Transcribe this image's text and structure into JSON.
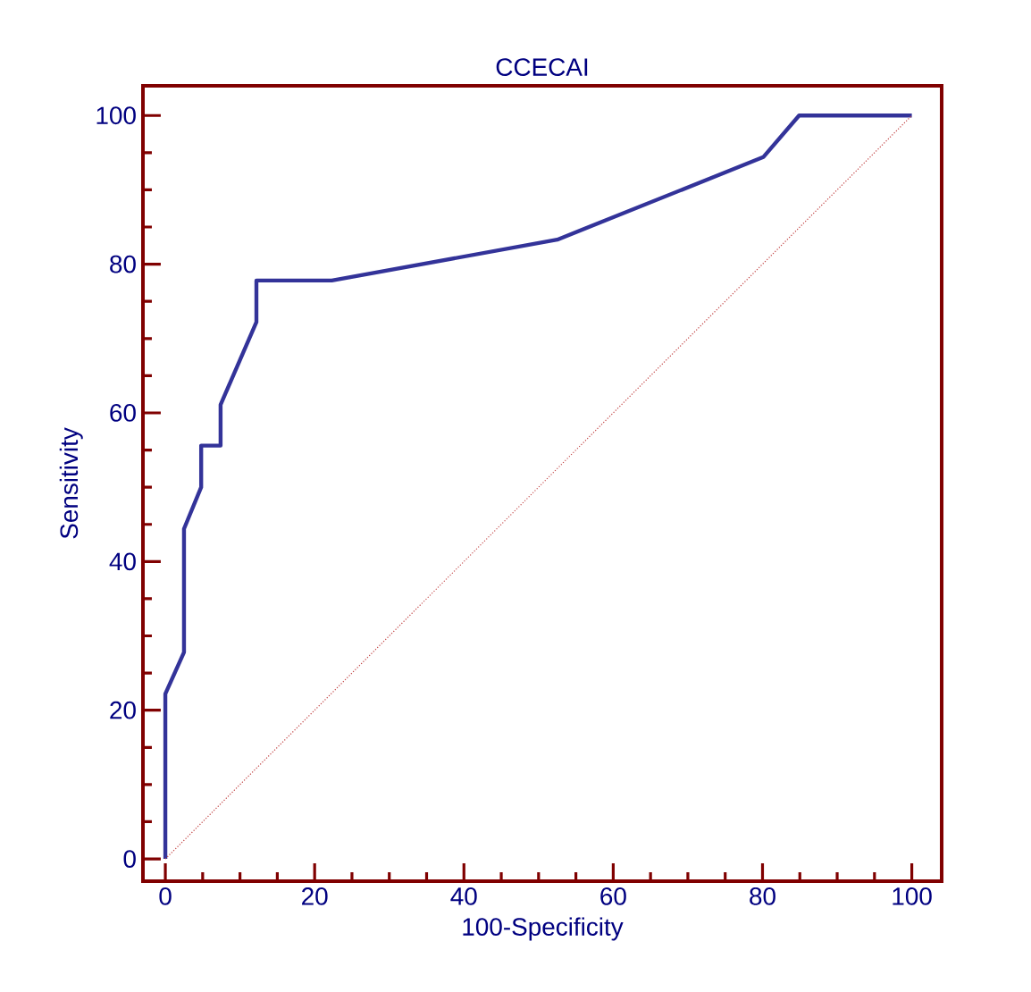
{
  "chart_data": {
    "type": "line",
    "title": "CCECAI",
    "xlabel": "100-Specificity",
    "ylabel": "Sensitivity",
    "xlim": [
      -3,
      104
    ],
    "ylim": [
      -3,
      104
    ],
    "xticks": [
      0,
      20,
      40,
      60,
      80,
      100
    ],
    "yticks": [
      0,
      20,
      40,
      60,
      80,
      100
    ],
    "series": [
      {
        "color": "#333399",
        "line_style": "solid",
        "x": [
          0,
          0,
          2.5,
          2.5,
          4.8,
          4.8,
          7.4,
          7.4,
          12.2,
          12.2,
          22.3,
          52.5,
          80.1,
          84.9,
          100
        ],
        "values": [
          0,
          22.2,
          27.8,
          44.4,
          50,
          55.6,
          55.6,
          61.1,
          72.2,
          77.8,
          77.8,
          83.3,
          94.4,
          100,
          100
        ]
      },
      {
        "color": "#c04040",
        "line_style": "dotted",
        "x": [
          0,
          100
        ],
        "values": [
          0,
          100
        ]
      }
    ]
  }
}
